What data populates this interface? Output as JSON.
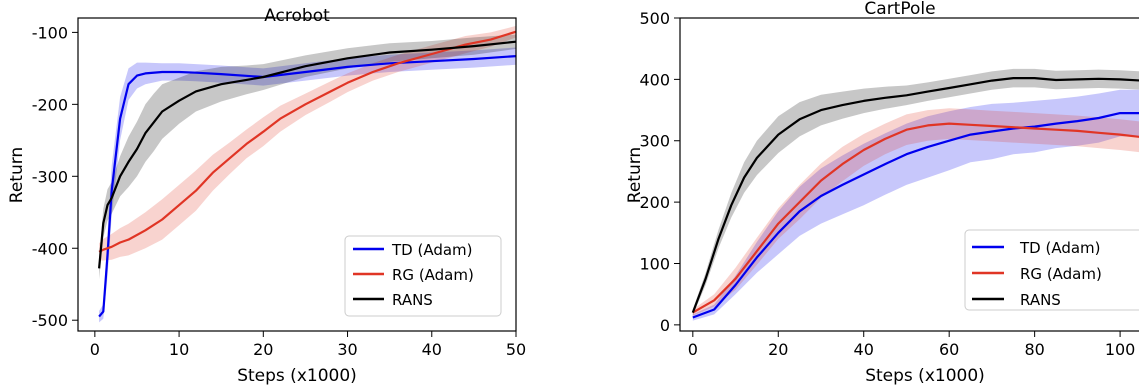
{
  "chart_data": [
    {
      "type": "line",
      "title": "Acrobot",
      "xlabel": "Steps (x1000)",
      "ylabel": "Return",
      "xlim": [
        -2,
        50
      ],
      "ylim": [
        -515,
        -80
      ],
      "xticks": [
        0,
        10,
        20,
        30,
        40,
        50
      ],
      "yticks": [
        -500,
        -400,
        -300,
        -200,
        -100
      ],
      "tick_labels_x": [
        "0",
        "10",
        "20",
        "30",
        "40",
        "50"
      ],
      "tick_labels_y": [
        "-500",
        "-400",
        "-300",
        "-200",
        "-100"
      ],
      "grid": false,
      "legend_position": "lower-right",
      "shaded_band": true,
      "series": [
        {
          "name": "TD (Adam)",
          "color": "#0000ee",
          "x": [
            0.5,
            1,
            1.5,
            2,
            3,
            4,
            5,
            6,
            8,
            10,
            12,
            15,
            20,
            25,
            30,
            35,
            40,
            45,
            50
          ],
          "y": [
            -495,
            -488,
            -410,
            -320,
            -220,
            -172,
            -160,
            -157,
            -155,
            -155,
            -156,
            -158,
            -162,
            -155,
            -148,
            -143,
            -140,
            -137,
            -133
          ],
          "band": [
            8,
            10,
            30,
            35,
            30,
            22,
            18,
            15,
            12,
            12,
            12,
            12,
            12,
            12,
            12,
            12,
            12,
            12,
            12
          ]
        },
        {
          "name": "RG (Adam)",
          "color": "#e03525",
          "x": [
            0.5,
            1,
            2,
            3,
            4,
            6,
            8,
            10,
            12,
            14,
            16,
            18,
            20,
            22,
            25,
            28,
            30,
            33,
            36,
            40,
            44,
            47,
            50
          ],
          "y": [
            -405,
            -402,
            -398,
            -392,
            -388,
            -375,
            -360,
            -340,
            -320,
            -295,
            -275,
            -255,
            -238,
            -220,
            -200,
            -182,
            -170,
            -155,
            -143,
            -130,
            -117,
            -110,
            -99
          ],
          "band": [
            12,
            15,
            18,
            20,
            22,
            25,
            28,
            28,
            28,
            25,
            22,
            20,
            20,
            18,
            15,
            14,
            13,
            12,
            12,
            12,
            12,
            10,
            8
          ]
        },
        {
          "name": "RANS",
          "color": "#000000",
          "x": [
            0.5,
            1,
            1.5,
            2,
            3,
            4,
            5,
            6,
            7,
            8,
            10,
            12,
            15,
            18,
            20,
            25,
            30,
            35,
            40,
            45,
            50
          ],
          "y": [
            -428,
            -365,
            -340,
            -330,
            -300,
            -280,
            -262,
            -240,
            -225,
            -210,
            -195,
            -182,
            -172,
            -166,
            -162,
            -147,
            -136,
            -128,
            -124,
            -119,
            -113
          ],
          "band": [
            15,
            20,
            22,
            22,
            28,
            35,
            38,
            40,
            40,
            38,
            32,
            28,
            24,
            20,
            18,
            15,
            14,
            13,
            12,
            12,
            10
          ]
        }
      ]
    },
    {
      "type": "line",
      "title": "CartPole",
      "xlabel": "Steps (x1000)",
      "ylabel": "Return",
      "xlim": [
        -3,
        107
      ],
      "ylim": [
        -10,
        500
      ],
      "xticks": [
        0,
        20,
        40,
        60,
        80,
        100
      ],
      "yticks": [
        0,
        100,
        200,
        300,
        400,
        500
      ],
      "tick_labels_x": [
        "0",
        "20",
        "40",
        "60",
        "80",
        "100"
      ],
      "tick_labels_y": [
        "0",
        "100",
        "200",
        "300",
        "400",
        "500"
      ],
      "grid": false,
      "legend_position": "lower-right",
      "shaded_band": true,
      "series": [
        {
          "name": "TD (Adam)",
          "color": "#0000ee",
          "x": [
            0,
            5,
            10,
            15,
            20,
            25,
            30,
            35,
            40,
            45,
            50,
            55,
            60,
            65,
            70,
            75,
            80,
            85,
            90,
            95,
            100,
            105,
            107
          ],
          "y": [
            12,
            25,
            65,
            110,
            150,
            185,
            210,
            228,
            245,
            262,
            278,
            290,
            300,
            310,
            315,
            320,
            323,
            328,
            332,
            337,
            345,
            345,
            340
          ],
          "band": [
            5,
            8,
            15,
            25,
            35,
            40,
            45,
            48,
            50,
            50,
            50,
            50,
            48,
            45,
            45,
            42,
            42,
            40,
            40,
            40,
            38,
            38,
            38
          ]
        },
        {
          "name": "RG (Adam)",
          "color": "#e03525",
          "x": [
            0,
            5,
            10,
            15,
            20,
            25,
            30,
            35,
            40,
            45,
            50,
            55,
            60,
            65,
            70,
            75,
            80,
            85,
            90,
            95,
            100,
            105,
            107
          ],
          "y": [
            20,
            40,
            75,
            120,
            165,
            200,
            235,
            262,
            285,
            303,
            318,
            325,
            328,
            326,
            324,
            322,
            320,
            318,
            316,
            313,
            310,
            306,
            305
          ],
          "band": [
            5,
            10,
            18,
            22,
            25,
            28,
            28,
            28,
            26,
            25,
            25,
            25,
            25,
            25,
            25,
            25,
            25,
            25,
            25,
            25,
            25,
            25,
            25
          ]
        },
        {
          "name": "RANS",
          "color": "#000000",
          "x": [
            0,
            3,
            6,
            9,
            12,
            15,
            20,
            25,
            30,
            35,
            40,
            45,
            50,
            55,
            60,
            65,
            70,
            75,
            80,
            85,
            90,
            95,
            100,
            105,
            107
          ],
          "y": [
            20,
            75,
            140,
            195,
            240,
            272,
            310,
            335,
            350,
            358,
            365,
            370,
            374,
            380,
            386,
            392,
            398,
            402,
            402,
            399,
            400,
            401,
            400,
            398,
            397
          ],
          "band": [
            5,
            10,
            15,
            20,
            25,
            28,
            30,
            28,
            25,
            22,
            20,
            18,
            16,
            15,
            15,
            15,
            15,
            15,
            15,
            15,
            15,
            15,
            15,
            15,
            15
          ]
        }
      ]
    }
  ]
}
